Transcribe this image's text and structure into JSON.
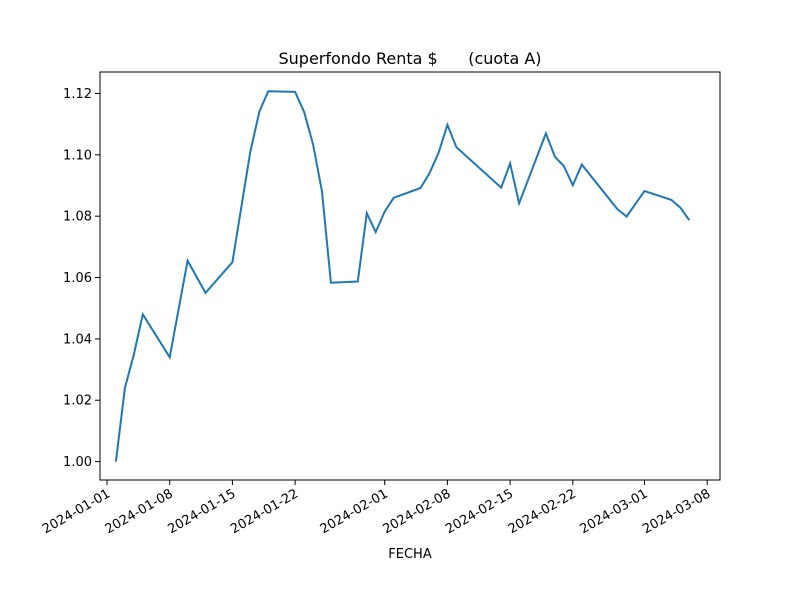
{
  "chart_data": {
    "type": "line",
    "title": "Superfondo Renta $      (cuota A)",
    "xlabel": "FECHA",
    "ylabel": "",
    "grid": false,
    "legend": "none",
    "x_ticks": [
      "2024-01-01",
      "2024-01-08",
      "2024-01-15",
      "2024-01-22",
      "2024-02-01",
      "2024-02-08",
      "2024-02-15",
      "2024-02-22",
      "2024-03-01",
      "2024-03-08"
    ],
    "y_ticks": [
      "1.00",
      "1.02",
      "1.04",
      "1.06",
      "1.08",
      "1.10",
      "1.12"
    ],
    "xlim": [
      "2024-01-01",
      "2024-03-08"
    ],
    "ylim": [
      0.994,
      1.127
    ],
    "line_color": "#1f77b4",
    "series": [
      {
        "name": "",
        "x": [
          "2024-01-02",
          "2024-01-03",
          "2024-01-04",
          "2024-01-05",
          "2024-01-08",
          "2024-01-10",
          "2024-01-12",
          "2024-01-15",
          "2024-01-17",
          "2024-01-18",
          "2024-01-19",
          "2024-01-22",
          "2024-01-23",
          "2024-01-24",
          "2024-01-25",
          "2024-01-26",
          "2024-01-29",
          "2024-01-30",
          "2024-01-31",
          "2024-02-01",
          "2024-02-02",
          "2024-02-05",
          "2024-02-06",
          "2024-02-07",
          "2024-02-08",
          "2024-02-09",
          "2024-02-14",
          "2024-02-15",
          "2024-02-16",
          "2024-02-19",
          "2024-02-20",
          "2024-02-21",
          "2024-02-22",
          "2024-02-23",
          "2024-02-27",
          "2024-02-28",
          "2024-03-01",
          "2024-03-04",
          "2024-03-05",
          "2024-03-06"
        ],
        "values": [
          1.0,
          1.024,
          1.035,
          1.048,
          1.034,
          1.0655,
          1.055,
          1.065,
          1.101,
          1.114,
          1.1207,
          1.1205,
          1.114,
          1.1035,
          1.088,
          1.0583,
          1.0587,
          1.081,
          1.0748,
          1.0815,
          1.086,
          1.0892,
          1.094,
          1.1005,
          1.1098,
          1.1025,
          1.0893,
          1.0972,
          1.0842,
          1.107,
          1.0994,
          1.0963,
          1.0901,
          1.0968,
          1.0822,
          1.0799,
          1.0882,
          1.0853,
          1.0828,
          1.0787
        ]
      }
    ]
  }
}
